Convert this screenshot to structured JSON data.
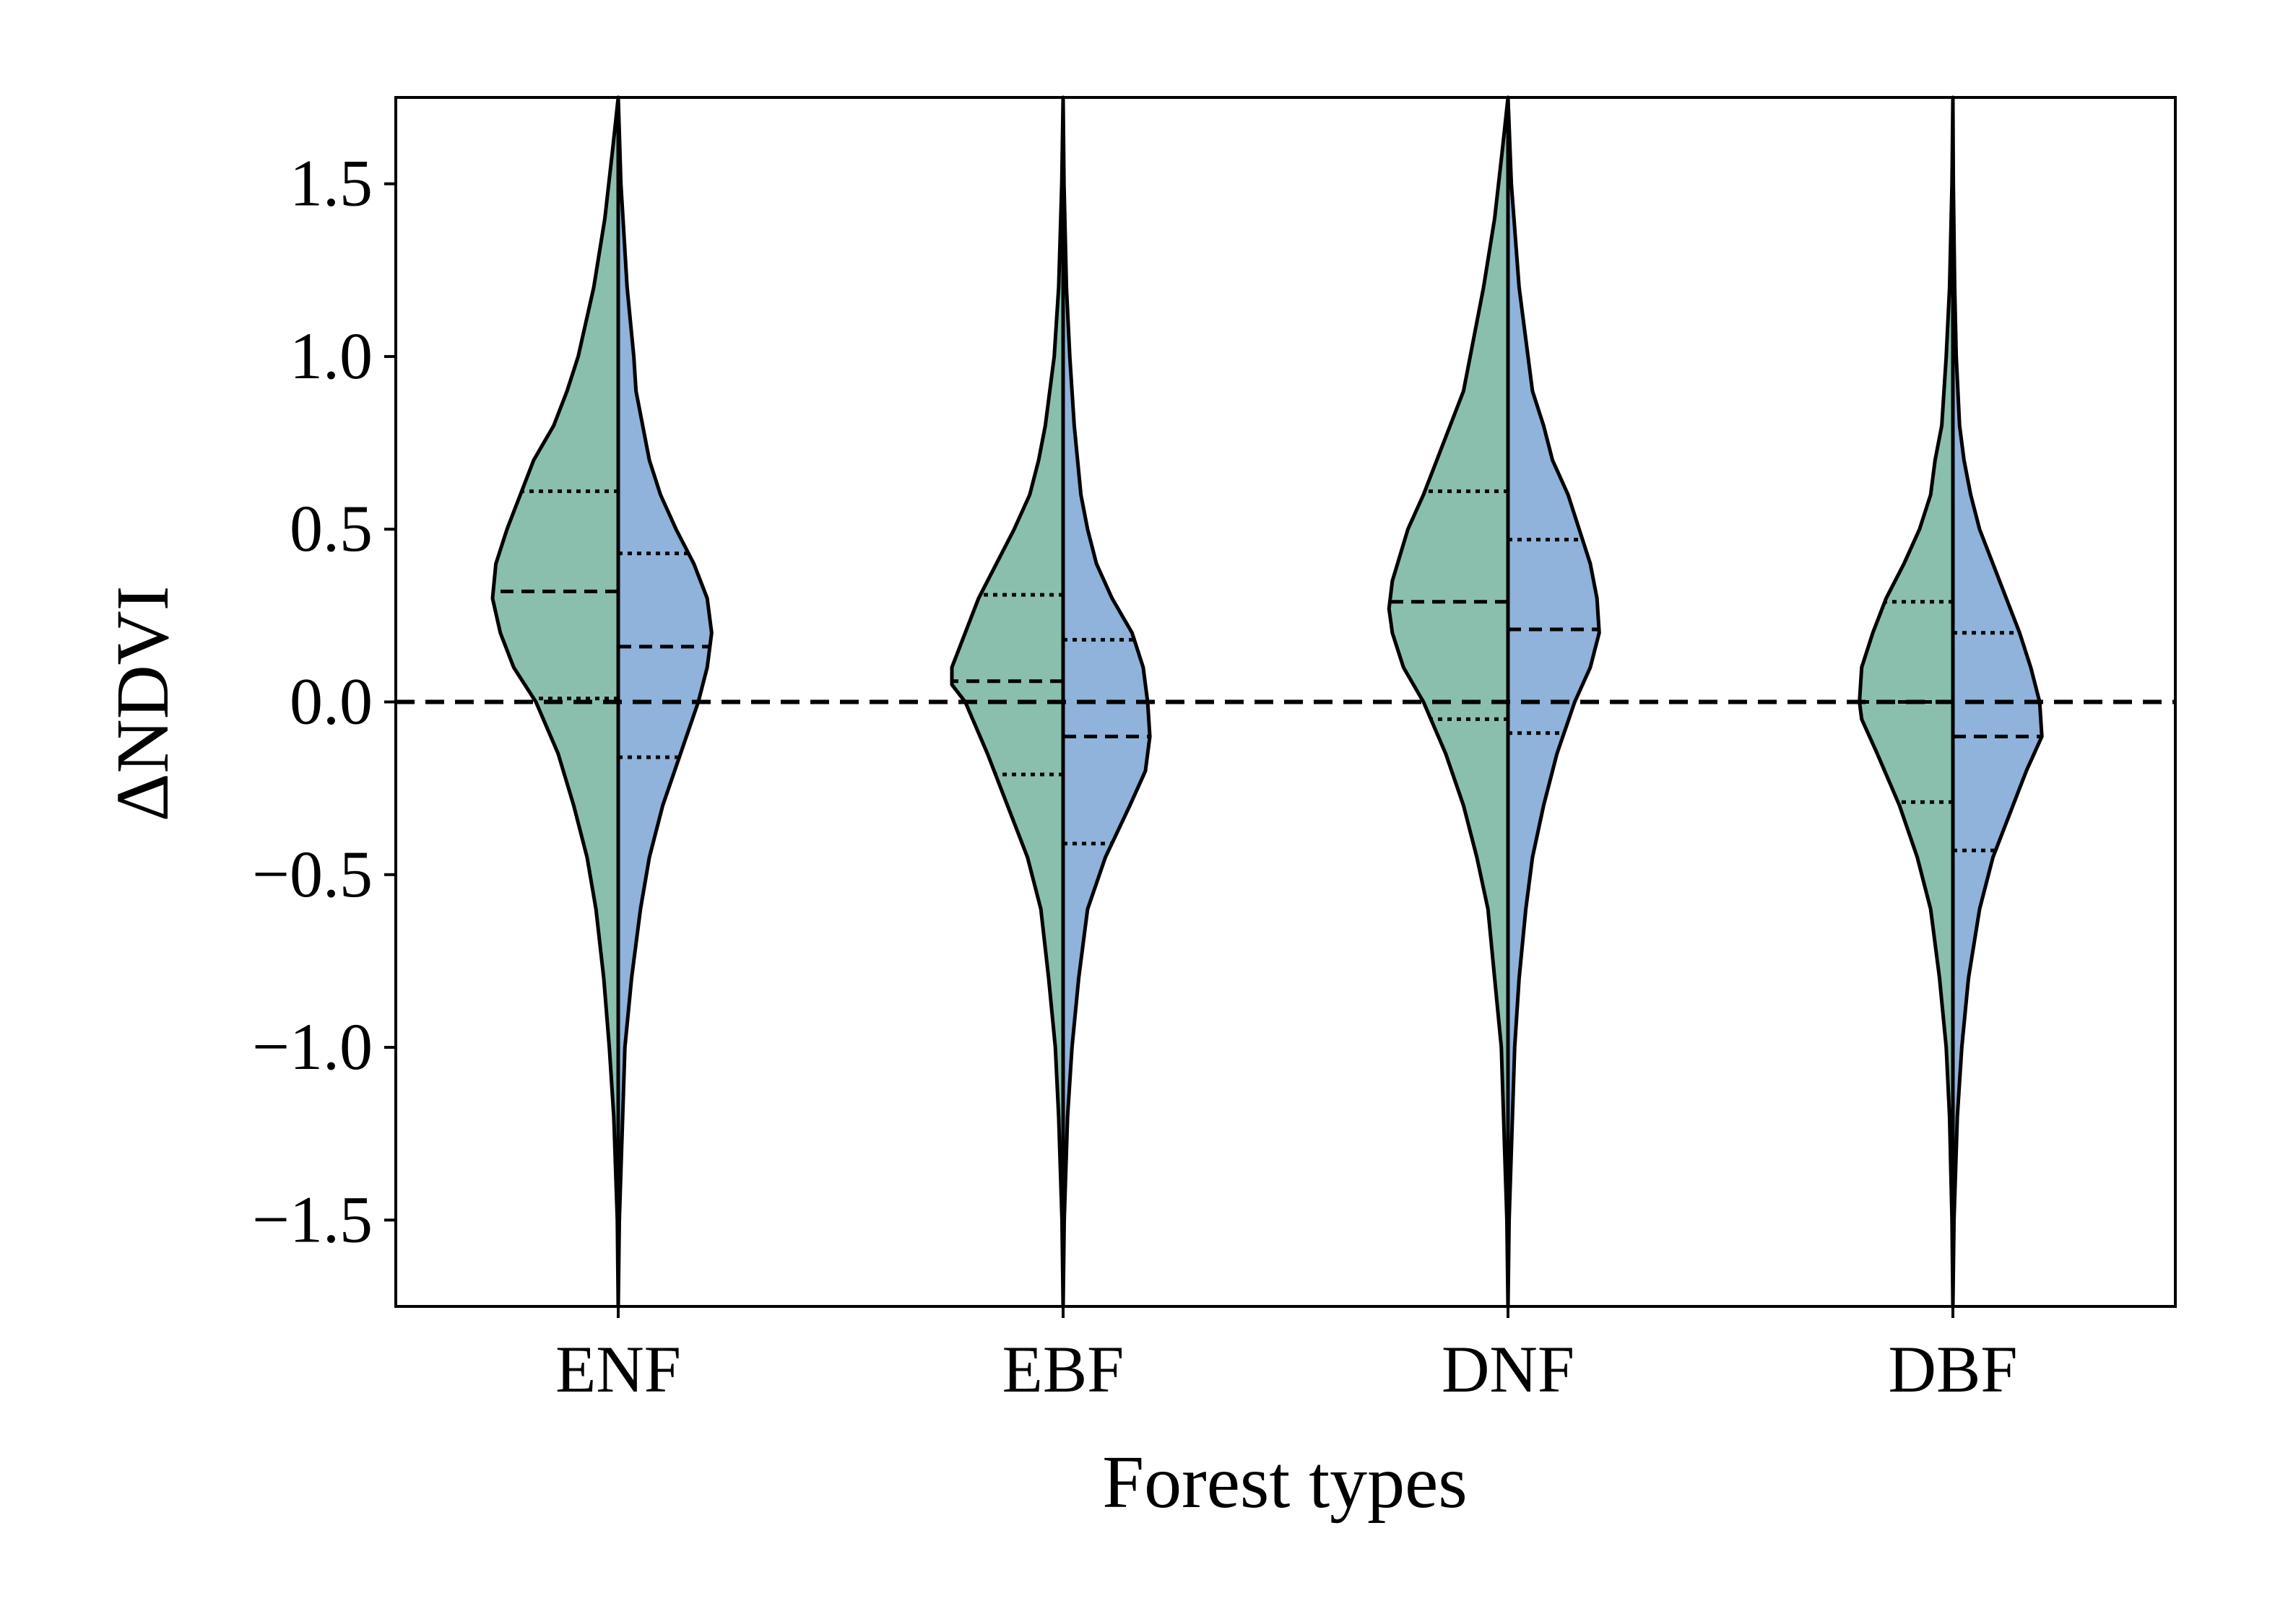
{
  "chart_data": {
    "type": "violin",
    "split": true,
    "xlabel": "Forest types",
    "ylabel": "ΔNDVI",
    "ylim": [
      -1.75,
      1.75
    ],
    "yticks": [
      -1.5,
      -1.0,
      -0.5,
      0.0,
      0.5,
      1.0,
      1.5
    ],
    "ytick_labels": [
      "−1.5",
      "−1.0",
      "−0.5",
      "0.0",
      "0.5",
      "1.0",
      "1.5"
    ],
    "categories": [
      "ENF",
      "EBF",
      "DNF",
      "DBF"
    ],
    "reference_line": 0.0,
    "grid": false,
    "legend": "none",
    "colors": {
      "left": "#8bbfad",
      "right": "#8fb3da",
      "outline": "#000000"
    },
    "series": [
      {
        "side": "left",
        "quartiles": [
          [
            0.01,
            0.32,
            0.61
          ],
          [
            -0.21,
            0.06,
            0.31
          ],
          [
            -0.05,
            0.29,
            0.61
          ],
          [
            -0.29,
            0.0,
            0.29
          ]
        ],
        "density": [
          [
            [
              -1.75,
              0.0
            ],
            [
              -1.5,
              0.004
            ],
            [
              -1.2,
              0.02
            ],
            [
              -1.0,
              0.04
            ],
            [
              -0.8,
              0.065
            ],
            [
              -0.6,
              0.1
            ],
            [
              -0.45,
              0.14
            ],
            [
              -0.3,
              0.2
            ],
            [
              -0.15,
              0.27
            ],
            [
              0.0,
              0.37
            ],
            [
              0.1,
              0.47
            ],
            [
              0.2,
              0.53
            ],
            [
              0.3,
              0.565
            ],
            [
              0.4,
              0.55
            ],
            [
              0.5,
              0.5
            ],
            [
              0.6,
              0.44
            ],
            [
              0.7,
              0.38
            ],
            [
              0.8,
              0.29
            ],
            [
              0.9,
              0.23
            ],
            [
              1.0,
              0.18
            ],
            [
              1.2,
              0.11
            ],
            [
              1.4,
              0.06
            ],
            [
              1.6,
              0.025
            ],
            [
              1.75,
              0.0
            ]
          ],
          [
            [
              -1.75,
              0.0
            ],
            [
              -1.5,
              0.005
            ],
            [
              -1.2,
              0.02
            ],
            [
              -1.0,
              0.035
            ],
            [
              -0.8,
              0.065
            ],
            [
              -0.6,
              0.1
            ],
            [
              -0.45,
              0.16
            ],
            [
              -0.3,
              0.25
            ],
            [
              -0.15,
              0.34
            ],
            [
              0.0,
              0.44
            ],
            [
              0.05,
              0.5
            ],
            [
              0.1,
              0.5
            ],
            [
              0.2,
              0.44
            ],
            [
              0.3,
              0.38
            ],
            [
              0.4,
              0.3
            ],
            [
              0.5,
              0.22
            ],
            [
              0.6,
              0.15
            ],
            [
              0.7,
              0.11
            ],
            [
              0.8,
              0.08
            ],
            [
              1.0,
              0.04
            ],
            [
              1.2,
              0.02
            ],
            [
              1.5,
              0.006
            ],
            [
              1.75,
              0.0
            ]
          ],
          [
            [
              -1.75,
              0.0
            ],
            [
              -1.5,
              0.005
            ],
            [
              -1.2,
              0.02
            ],
            [
              -1.0,
              0.03
            ],
            [
              -0.8,
              0.06
            ],
            [
              -0.6,
              0.09
            ],
            [
              -0.45,
              0.14
            ],
            [
              -0.3,
              0.2
            ],
            [
              -0.15,
              0.28
            ],
            [
              0.0,
              0.38
            ],
            [
              0.1,
              0.47
            ],
            [
              0.2,
              0.52
            ],
            [
              0.27,
              0.535
            ],
            [
              0.35,
              0.52
            ],
            [
              0.5,
              0.45
            ],
            [
              0.6,
              0.38
            ],
            [
              0.7,
              0.32
            ],
            [
              0.8,
              0.26
            ],
            [
              0.9,
              0.2
            ],
            [
              1.0,
              0.17
            ],
            [
              1.2,
              0.11
            ],
            [
              1.4,
              0.06
            ],
            [
              1.6,
              0.025
            ],
            [
              1.75,
              0.0
            ]
          ],
          [
            [
              -1.75,
              0.0
            ],
            [
              -1.5,
              0.004
            ],
            [
              -1.2,
              0.015
            ],
            [
              -1.0,
              0.03
            ],
            [
              -0.8,
              0.06
            ],
            [
              -0.6,
              0.1
            ],
            [
              -0.45,
              0.16
            ],
            [
              -0.3,
              0.24
            ],
            [
              -0.15,
              0.34
            ],
            [
              -0.05,
              0.41
            ],
            [
              0.0,
              0.42
            ],
            [
              0.1,
              0.41
            ],
            [
              0.2,
              0.36
            ],
            [
              0.3,
              0.3
            ],
            [
              0.4,
              0.22
            ],
            [
              0.5,
              0.15
            ],
            [
              0.6,
              0.1
            ],
            [
              0.7,
              0.08
            ],
            [
              0.8,
              0.05
            ],
            [
              1.0,
              0.03
            ],
            [
              1.2,
              0.015
            ],
            [
              1.5,
              0.004
            ],
            [
              1.75,
              0.0
            ]
          ]
        ]
      },
      {
        "side": "right",
        "quartiles": [
          [
            -0.16,
            0.16,
            0.43
          ],
          [
            -0.41,
            -0.1,
            0.18
          ],
          [
            -0.09,
            0.21,
            0.47
          ],
          [
            -0.43,
            -0.1,
            0.2
          ]
        ],
        "density": [
          [
            [
              -1.75,
              0.0
            ],
            [
              -1.5,
              0.005
            ],
            [
              -1.2,
              0.02
            ],
            [
              -1.0,
              0.03
            ],
            [
              -0.8,
              0.06
            ],
            [
              -0.6,
              0.1
            ],
            [
              -0.45,
              0.14
            ],
            [
              -0.3,
              0.2
            ],
            [
              -0.15,
              0.28
            ],
            [
              0.0,
              0.36
            ],
            [
              0.1,
              0.4
            ],
            [
              0.2,
              0.42
            ],
            [
              0.3,
              0.4
            ],
            [
              0.4,
              0.34
            ],
            [
              0.5,
              0.26
            ],
            [
              0.6,
              0.19
            ],
            [
              0.7,
              0.14
            ],
            [
              0.8,
              0.11
            ],
            [
              0.9,
              0.08
            ],
            [
              1.0,
              0.07
            ],
            [
              1.2,
              0.04
            ],
            [
              1.5,
              0.012
            ],
            [
              1.75,
              0.0
            ]
          ],
          [
            [
              -1.75,
              0.0
            ],
            [
              -1.5,
              0.005
            ],
            [
              -1.2,
              0.02
            ],
            [
              -1.0,
              0.04
            ],
            [
              -0.8,
              0.07
            ],
            [
              -0.6,
              0.11
            ],
            [
              -0.45,
              0.19
            ],
            [
              -0.3,
              0.3
            ],
            [
              -0.2,
              0.37
            ],
            [
              -0.1,
              0.39
            ],
            [
              0.0,
              0.38
            ],
            [
              0.1,
              0.36
            ],
            [
              0.2,
              0.31
            ],
            [
              0.3,
              0.22
            ],
            [
              0.4,
              0.15
            ],
            [
              0.5,
              0.11
            ],
            [
              0.6,
              0.08
            ],
            [
              0.8,
              0.05
            ],
            [
              1.0,
              0.03
            ],
            [
              1.2,
              0.015
            ],
            [
              1.5,
              0.004
            ],
            [
              1.75,
              0.0
            ]
          ],
          [
            [
              -1.75,
              0.0
            ],
            [
              -1.5,
              0.005
            ],
            [
              -1.2,
              0.02
            ],
            [
              -1.0,
              0.03
            ],
            [
              -0.8,
              0.05
            ],
            [
              -0.6,
              0.08
            ],
            [
              -0.45,
              0.11
            ],
            [
              -0.3,
              0.16
            ],
            [
              -0.15,
              0.22
            ],
            [
              0.0,
              0.3
            ],
            [
              0.1,
              0.37
            ],
            [
              0.2,
              0.41
            ],
            [
              0.3,
              0.4
            ],
            [
              0.4,
              0.37
            ],
            [
              0.5,
              0.32
            ],
            [
              0.6,
              0.27
            ],
            [
              0.7,
              0.2
            ],
            [
              0.8,
              0.16
            ],
            [
              0.9,
              0.11
            ],
            [
              1.0,
              0.09
            ],
            [
              1.2,
              0.05
            ],
            [
              1.5,
              0.015
            ],
            [
              1.75,
              0.0
            ]
          ],
          [
            [
              -1.75,
              0.0
            ],
            [
              -1.5,
              0.005
            ],
            [
              -1.2,
              0.02
            ],
            [
              -1.0,
              0.04
            ],
            [
              -0.8,
              0.07
            ],
            [
              -0.6,
              0.12
            ],
            [
              -0.45,
              0.18
            ],
            [
              -0.3,
              0.27
            ],
            [
              -0.2,
              0.33
            ],
            [
              -0.1,
              0.4
            ],
            [
              0.0,
              0.39
            ],
            [
              0.1,
              0.35
            ],
            [
              0.2,
              0.3
            ],
            [
              0.3,
              0.24
            ],
            [
              0.4,
              0.18
            ],
            [
              0.5,
              0.12
            ],
            [
              0.6,
              0.08
            ],
            [
              0.7,
              0.05
            ],
            [
              0.8,
              0.03
            ],
            [
              1.0,
              0.015
            ],
            [
              1.2,
              0.008
            ],
            [
              1.5,
              0.002
            ],
            [
              1.75,
              0.0
            ]
          ]
        ]
      }
    ]
  }
}
